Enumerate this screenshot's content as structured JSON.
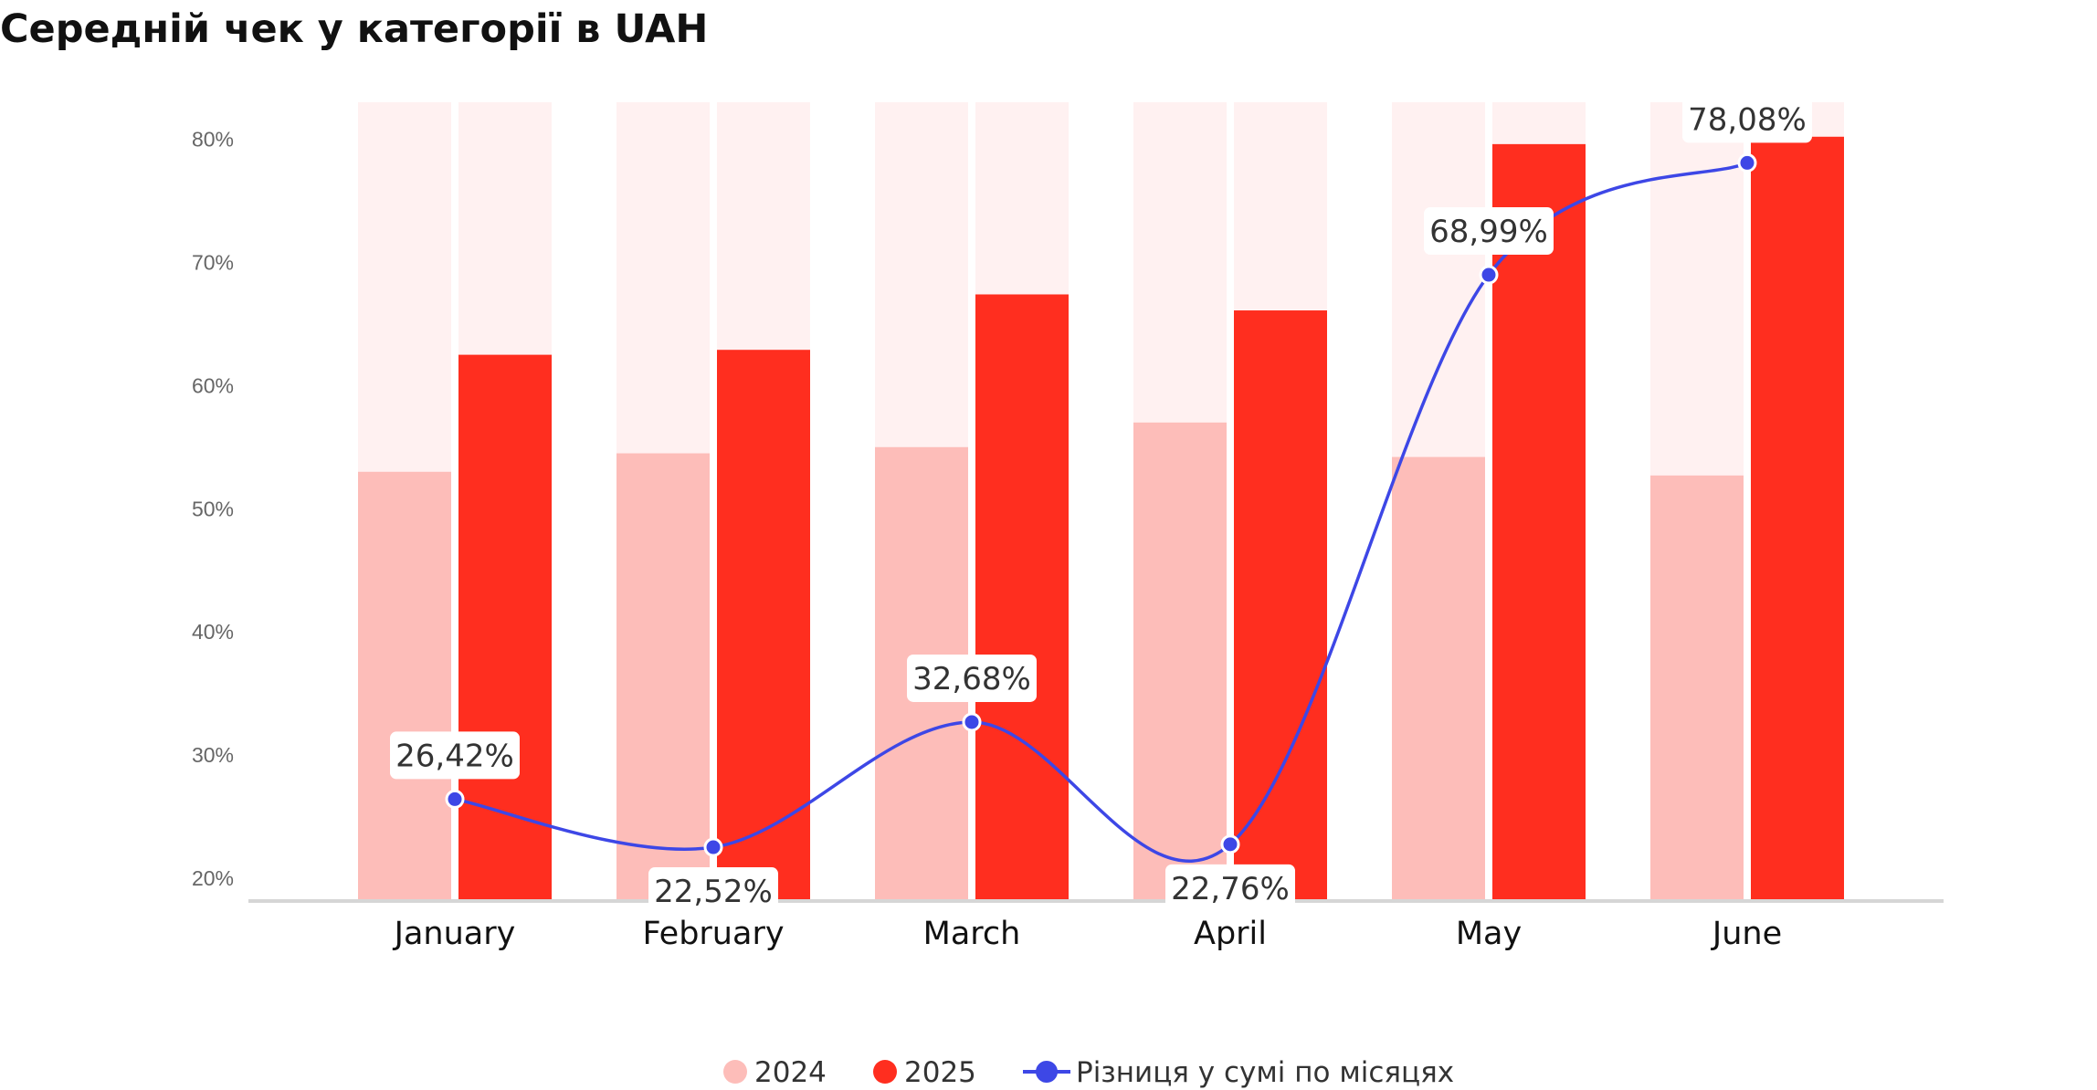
{
  "chart_data": {
    "type": "bar",
    "title": "Середній чек у категорії в UAH",
    "categories": [
      "January",
      "February",
      "March",
      "April",
      "May",
      "June"
    ],
    "series": [
      {
        "name": "2024",
        "type": "bar",
        "color": "#fdbdb9",
        "values": [
          53.0,
          54.5,
          55.0,
          57.0,
          54.2,
          52.7
        ]
      },
      {
        "name": "2025",
        "type": "bar",
        "color": "#ff2e1f",
        "values": [
          62.5,
          62.9,
          67.4,
          66.1,
          79.6,
          80.2
        ]
      },
      {
        "name": "Різниця у сумі по місяцях",
        "type": "line",
        "color": "#3d47e6",
        "values": [
          26.42,
          22.52,
          32.68,
          22.76,
          68.99,
          78.08
        ],
        "labels": [
          "26,42%",
          "22,52%",
          "32,68%",
          "22,76%",
          "68,99%",
          "78,08%"
        ]
      }
    ],
    "yticks": [
      "20%",
      "30%",
      "40%",
      "50%",
      "60%",
      "70%",
      "80%"
    ],
    "ytick_values": [
      20,
      30,
      40,
      50,
      60,
      70,
      80
    ],
    "ylim": [
      18.3,
      83.0
    ],
    "xlabel": "",
    "ylabel": "",
    "grid": false,
    "legend": "bottom-center",
    "bar_background_color": "#fff1f1"
  }
}
